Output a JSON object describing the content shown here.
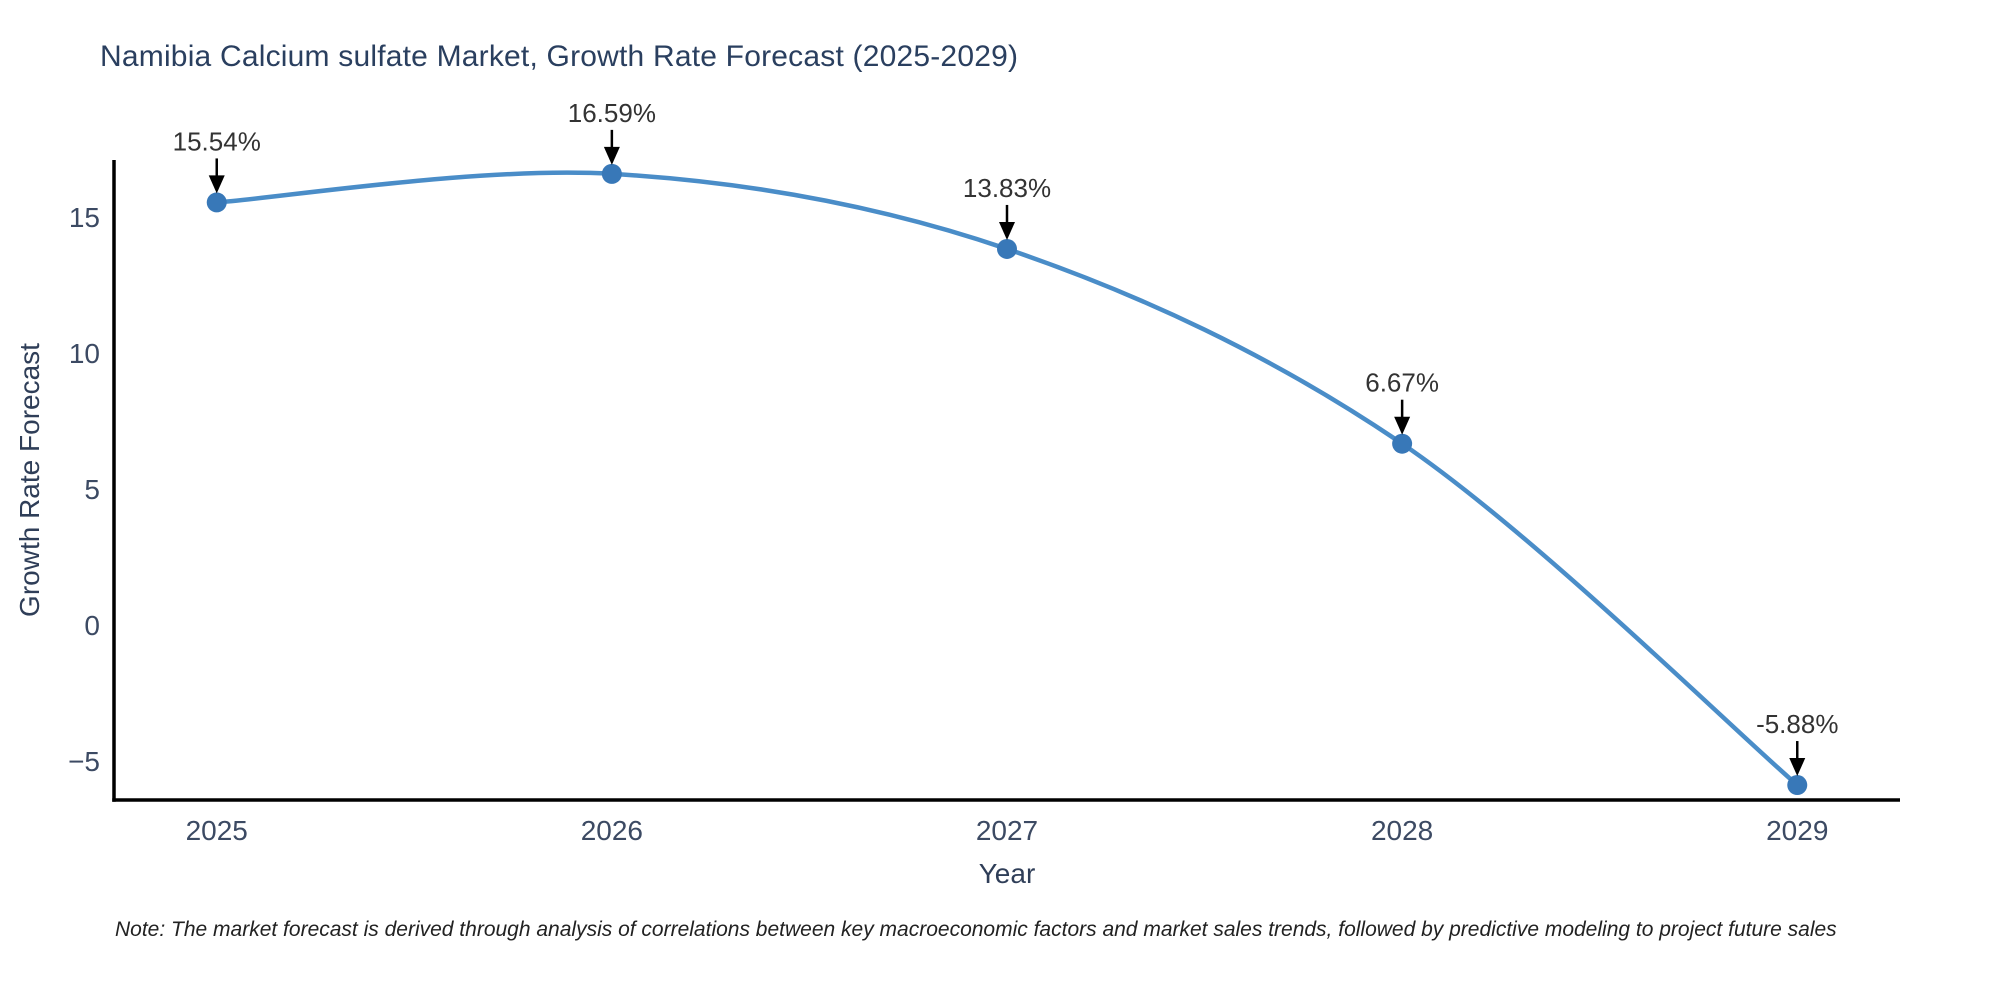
{
  "note": "Note: The market forecast is derived through analysis of correlations between key macroeconomic factors and market sales trends, followed by predictive modeling to project future sales",
  "chart_data": {
    "type": "line",
    "title": "Namibia Calcium sulfate Market, Growth Rate Forecast (2025-2029)",
    "xlabel": "Year",
    "ylabel": "Growth Rate Forecast",
    "x": [
      2025,
      2026,
      2027,
      2028,
      2029
    ],
    "values": [
      15.54,
      16.59,
      13.83,
      6.67,
      -5.88
    ],
    "point_labels": [
      "15.54%",
      "16.59%",
      "13.83%",
      "6.67%",
      "-5.88%"
    ],
    "x_tick_labels": [
      "2025",
      "2026",
      "2027",
      "2028",
      "2029"
    ],
    "y_ticks": [
      {
        "value": 15,
        "label": "15"
      },
      {
        "value": 10,
        "label": "10"
      },
      {
        "value": 5,
        "label": "5"
      },
      {
        "value": 0,
        "label": "0"
      },
      {
        "value": -5,
        "label": "−5"
      }
    ],
    "xlim": [
      2024.74,
      2029.26
    ],
    "ylim": [
      -6.43,
      17.1
    ],
    "grid": false,
    "legend": "none",
    "line_shape": "spline",
    "annotations_have_arrows": true,
    "colors": {
      "line": "#4a8dc8",
      "marker": "#3878b8",
      "annotation_arrow": "#000000",
      "axis": "#000000",
      "title_text": "#2a3f5f",
      "tick_text": "#3c4a63",
      "note_text": "#222222",
      "background": "#ffffff"
    }
  }
}
